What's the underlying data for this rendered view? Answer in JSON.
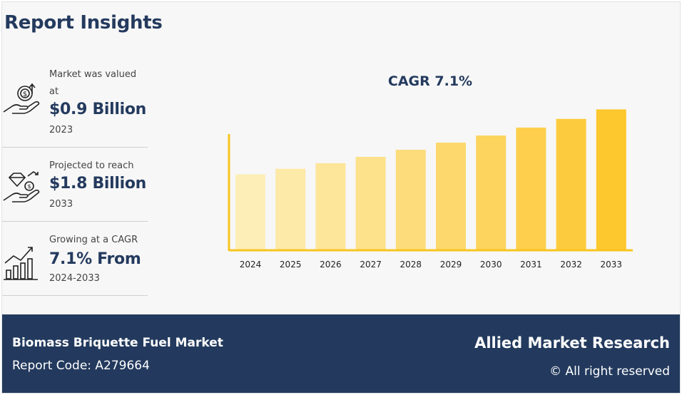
{
  "title": "Report Insights",
  "stats": [
    {
      "caption_line1": "Market was valued",
      "caption_line2": "at",
      "value": "$0.9 Billion",
      "sub": "2023",
      "icon": "money-hand-icon"
    },
    {
      "caption_line1": "Projected to reach",
      "value": "$1.8 Billion",
      "sub": "2033",
      "icon": "diamond-hand-icon"
    },
    {
      "caption_line1": "Growing at a CAGR",
      "value": "7.1% From",
      "sub": "2024-2033",
      "icon": "growth-chart-icon"
    }
  ],
  "chart_data": {
    "type": "bar",
    "title": "CAGR 7.1%",
    "categories": [
      "2024",
      "2025",
      "2026",
      "2027",
      "2028",
      "2029",
      "2030",
      "2031",
      "2032",
      "2033"
    ],
    "values": [
      0.96,
      1.03,
      1.1,
      1.18,
      1.27,
      1.36,
      1.45,
      1.55,
      1.66,
      1.78
    ],
    "xlabel": "",
    "ylabel": "",
    "ylim": [
      0,
      2.0
    ],
    "grid": false,
    "colors": [
      "#fdeeb8",
      "#fde9a8",
      "#fde59a",
      "#fde18b",
      "#fddc7c",
      "#fdd86c",
      "#fdd45d",
      "#fdcf4d",
      "#fdcb3e",
      "#fdc72e"
    ],
    "axis_color": "#f7c51f"
  },
  "footer": {
    "market_name": "Biomass Briquette Fuel Market",
    "report_code": "Report Code: A279664",
    "brand": "Allied Market Research",
    "rights": "© All right reserved"
  }
}
